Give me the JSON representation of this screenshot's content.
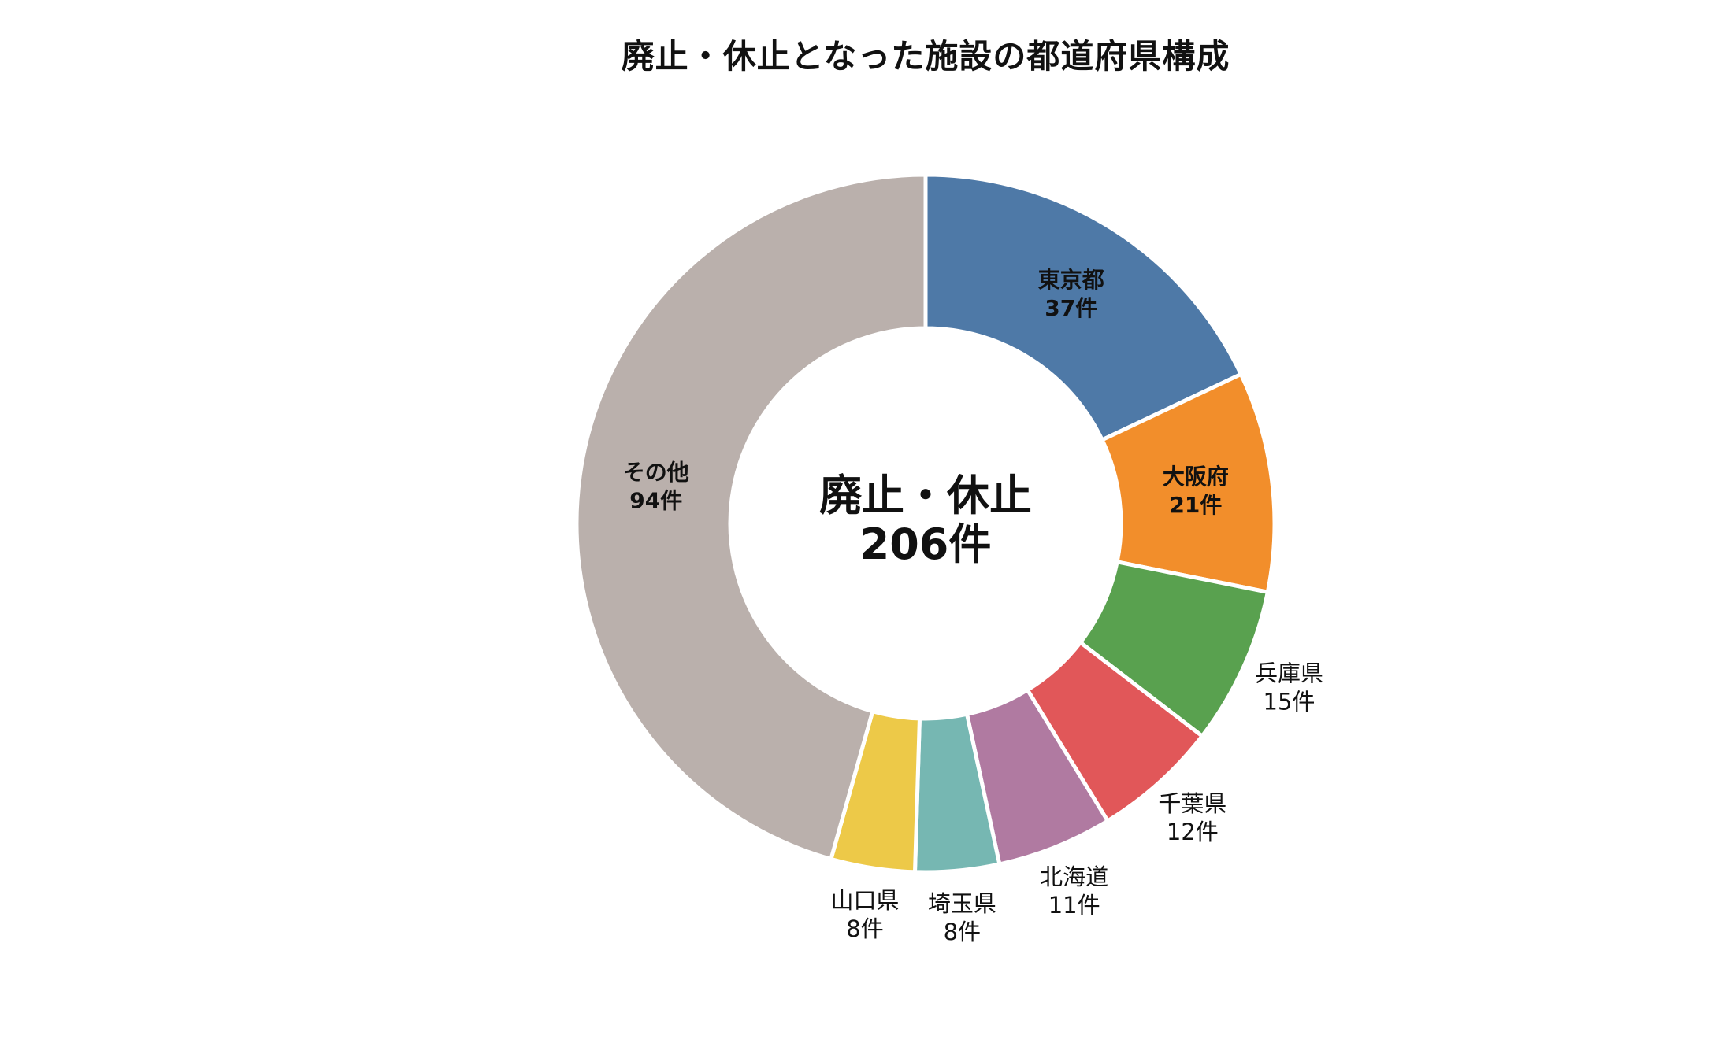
{
  "chart_data": {
    "type": "pie",
    "style": "donut",
    "title": "廃止・休止となった施設の都道府県構成",
    "center_label": {
      "line1": "廃止・休止",
      "line2": "206件"
    },
    "unit": "件",
    "total": 206,
    "slices": [
      {
        "name": "東京都",
        "value": 37,
        "value_label": "37件",
        "color": "#4e79a7",
        "label_style": "inside"
      },
      {
        "name": "大阪府",
        "value": 21,
        "value_label": "21件",
        "color": "#f28e2b",
        "label_style": "inside"
      },
      {
        "name": "兵庫県",
        "value": 15,
        "value_label": "15件",
        "color": "#59a14f",
        "label_style": "outside"
      },
      {
        "name": "千葉県",
        "value": 12,
        "value_label": "12件",
        "color": "#e15759",
        "label_style": "outside"
      },
      {
        "name": "北海道",
        "value": 11,
        "value_label": "11件",
        "color": "#b07aa1",
        "label_style": "outside"
      },
      {
        "name": "埼玉県",
        "value": 8,
        "value_label": "8件",
        "color": "#76b7b2",
        "label_style": "outside"
      },
      {
        "name": "山口県",
        "value": 8,
        "value_label": "8件",
        "color": "#edc948",
        "label_style": "outside"
      },
      {
        "name": "その他",
        "value": 94,
        "value_label": "94件",
        "color": "#bab0ac",
        "label_style": "inside"
      }
    ],
    "start_angle": "12 o'clock",
    "direction": "clockwise",
    "legend": "none"
  }
}
